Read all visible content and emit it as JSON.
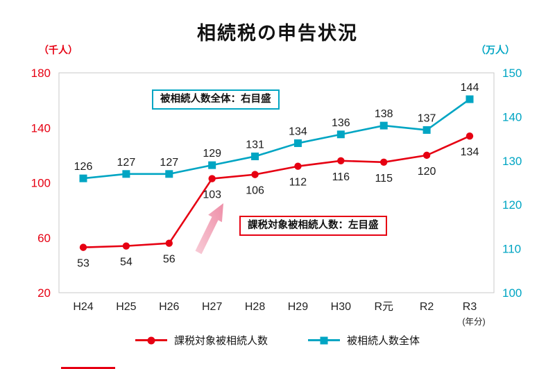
{
  "title": "相続税の申告状況",
  "left_axis_unit": "（千人）",
  "right_axis_unit": "（万人）",
  "x_axis_note": "(年分)",
  "annotations": {
    "total_box": "被相続人数全体：右目盛",
    "taxable_box": "課税対象被相続人数：左目盛"
  },
  "legend": [
    {
      "label": "課税対象被相続人数",
      "marker": "circle",
      "color": "#e60012"
    },
    {
      "label": "被相続人数全体",
      "marker": "square",
      "color": "#00a5c3"
    }
  ],
  "colors": {
    "red": "#e60012",
    "teal": "#00a5c3",
    "arrow_pink": "#f2a8ba",
    "plot_border": "#c9c9c9",
    "label_text": "#1a1a1a"
  },
  "chart_data": {
    "type": "line",
    "title": "相続税の申告状況",
    "categories": [
      "H24",
      "H25",
      "H26",
      "H27",
      "H28",
      "H29",
      "H30",
      "R元",
      "R2",
      "R3"
    ],
    "series": [
      {
        "name": "課税対象被相続人数",
        "axis": "left",
        "marker": "circle",
        "color": "#e60012",
        "values": [
          53,
          54,
          56,
          103,
          106,
          112,
          116,
          115,
          120,
          134
        ]
      },
      {
        "name": "被相続人数全体",
        "axis": "right",
        "marker": "square",
        "color": "#00a5c3",
        "values": [
          126,
          127,
          127,
          129,
          131,
          134,
          136,
          138,
          137,
          144
        ]
      }
    ],
    "left_axis": {
      "label": "（千人）",
      "min": 20,
      "max": 180,
      "ticks": [
        180,
        140,
        100,
        60,
        20
      ]
    },
    "right_axis": {
      "label": "（万人）",
      "min": 100,
      "max": 150,
      "ticks": [
        150,
        140,
        130,
        120,
        110,
        100
      ]
    },
    "xlabel": "(年分)",
    "grid": false,
    "legend_position": "bottom"
  }
}
